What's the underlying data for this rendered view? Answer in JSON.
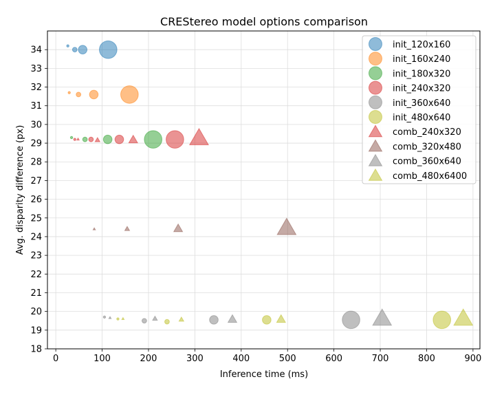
{
  "chart_data": {
    "type": "scatter",
    "title": "CREStereo model options comparison",
    "xlabel": "Inference time (ms)",
    "ylabel": "Avg. disparity difference (px)",
    "xlim": [
      -18,
      915
    ],
    "ylim": [
      18,
      35
    ],
    "xticks": [
      0,
      100,
      200,
      300,
      400,
      500,
      600,
      700,
      800,
      900
    ],
    "yticks": [
      18,
      19,
      20,
      21,
      22,
      23,
      24,
      25,
      26,
      27,
      28,
      29,
      30,
      31,
      32,
      33,
      34
    ],
    "grid": true,
    "legend_position": "top-right",
    "marker_size_levels": [
      1,
      2,
      3,
      5,
      10
    ],
    "series": [
      {
        "name": "init_120x160",
        "marker": "circle",
        "color": "#1f77b4",
        "points": [
          {
            "x": 26,
            "y": 34.2,
            "s": 1
          },
          {
            "x": 41,
            "y": 34.0,
            "s": 2
          },
          {
            "x": 58,
            "y": 34.0,
            "s": 3
          },
          {
            "x": 113,
            "y": 34.0,
            "s": 5
          }
        ]
      },
      {
        "name": "init_160x240",
        "marker": "circle",
        "color": "#ff7f0e",
        "points": [
          {
            "x": 29,
            "y": 31.7,
            "s": 1
          },
          {
            "x": 49,
            "y": 31.6,
            "s": 2
          },
          {
            "x": 82,
            "y": 31.6,
            "s": 3
          },
          {
            "x": 159,
            "y": 31.6,
            "s": 5
          }
        ]
      },
      {
        "name": "init_180x320",
        "marker": "circle",
        "color": "#2ca02c",
        "points": [
          {
            "x": 34,
            "y": 29.3,
            "s": 1
          },
          {
            "x": 63,
            "y": 29.2,
            "s": 2
          },
          {
            "x": 112,
            "y": 29.2,
            "s": 3
          },
          {
            "x": 210,
            "y": 29.2,
            "s": 5
          }
        ]
      },
      {
        "name": "init_240x320",
        "marker": "circle",
        "color": "#d62728",
        "points": [
          {
            "x": 41,
            "y": 29.2,
            "s": 1
          },
          {
            "x": 76,
            "y": 29.2,
            "s": 2
          },
          {
            "x": 137,
            "y": 29.2,
            "s": 3
          },
          {
            "x": 257,
            "y": 29.2,
            "s": 5
          }
        ]
      },
      {
        "name": "init_360x640",
        "marker": "circle",
        "color": "#7f7f7f",
        "points": [
          {
            "x": 105,
            "y": 19.7,
            "s": 1
          },
          {
            "x": 191,
            "y": 19.5,
            "s": 2
          },
          {
            "x": 341,
            "y": 19.55,
            "s": 3
          },
          {
            "x": 637,
            "y": 19.55,
            "s": 5
          }
        ]
      },
      {
        "name": "init_480x640",
        "marker": "circle",
        "color": "#bcbd22",
        "points": [
          {
            "x": 134,
            "y": 19.6,
            "s": 1
          },
          {
            "x": 240,
            "y": 19.45,
            "s": 2
          },
          {
            "x": 455,
            "y": 19.55,
            "s": 3
          },
          {
            "x": 833,
            "y": 19.55,
            "s": 5
          }
        ]
      },
      {
        "name": "comb_240x320",
        "marker": "triangle",
        "color": "#d62728",
        "points": [
          {
            "x": 48,
            "y": 29.2,
            "s": 1
          },
          {
            "x": 90,
            "y": 29.15,
            "s": 2
          },
          {
            "x": 167,
            "y": 29.15,
            "s": 3
          },
          {
            "x": 309,
            "y": 29.2,
            "s": 5
          }
        ]
      },
      {
        "name": "comb_320x480",
        "marker": "triangle",
        "color": "#8c564b",
        "points": [
          {
            "x": 83,
            "y": 24.4,
            "s": 1
          },
          {
            "x": 154,
            "y": 24.4,
            "s": 2
          },
          {
            "x": 264,
            "y": 24.4,
            "s": 3
          },
          {
            "x": 498,
            "y": 24.4,
            "s": 5
          }
        ]
      },
      {
        "name": "comb_360x640",
        "marker": "triangle",
        "color": "#7f7f7f",
        "points": [
          {
            "x": 117,
            "y": 19.65,
            "s": 1
          },
          {
            "x": 214,
            "y": 19.6,
            "s": 2
          },
          {
            "x": 381,
            "y": 19.55,
            "s": 3
          },
          {
            "x": 704,
            "y": 19.55,
            "s": 5
          }
        ]
      },
      {
        "name": "comb_480x6400",
        "marker": "triangle",
        "color": "#bcbd22",
        "points": [
          {
            "x": 145,
            "y": 19.6,
            "s": 1
          },
          {
            "x": 271,
            "y": 19.55,
            "s": 2
          },
          {
            "x": 486,
            "y": 19.55,
            "s": 3
          },
          {
            "x": 879,
            "y": 19.55,
            "s": 5
          }
        ]
      }
    ]
  }
}
